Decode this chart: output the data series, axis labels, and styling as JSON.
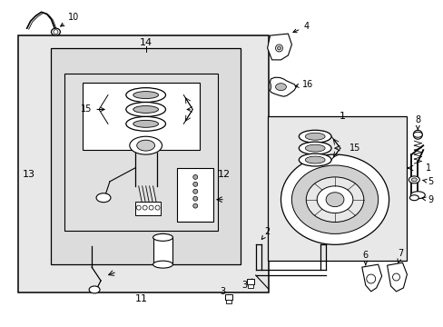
{
  "white": "#ffffff",
  "black": "#000000",
  "light_gray": "#e8e8e8",
  "mid_gray": "#d0d0d0",
  "box_gray": "#f0f0f0"
}
